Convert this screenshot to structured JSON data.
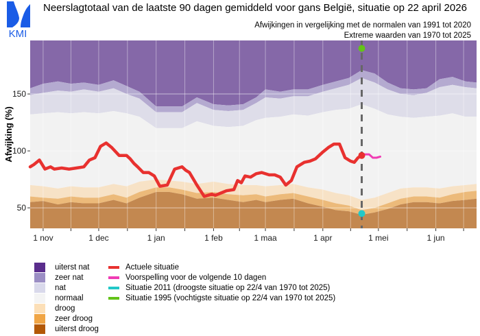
{
  "header": {
    "logo_text": "KMI",
    "title": "Neerslagtotaal van de laatste 90 dagen gemiddeld voor gans België, situatie op 22 april 2026",
    "subtitle_1": "Afwijkingen in vergelijking met de normalen van 1991 tot 2020",
    "subtitle_2": "Extreme waarden van 1970 tot 2025"
  },
  "colors": {
    "uiterst_nat": "#5a2d8c",
    "zeer_nat": "#9b8ec4",
    "nat": "#d9d9eb",
    "normaal": "#f4f4f4",
    "droog": "#fcdfb7",
    "zeer_droog": "#f0a545",
    "uiterst_droog": "#b35806",
    "plot_uiterst_nat": "#8568a8",
    "plot_zeer_nat": "#b4aad0",
    "plot_nat": "#dedde9",
    "plot_normaal": "#f2f2f2",
    "plot_droog": "#f7e2c6",
    "plot_zeer_droog": "#ecba7a",
    "plot_uiterst_droog": "#c38850",
    "actueel": "#e8312f",
    "voorspelling": "#f03cb4",
    "situatie_2011": "#22c8c8",
    "situatie_1995": "#63c318",
    "refline": "#666666",
    "logo": "#1a5ce6"
  },
  "legend": {
    "bands": [
      {
        "label": "uiterst nat",
        "color_key": "uiterst_nat"
      },
      {
        "label": "zeer nat",
        "color_key": "zeer_nat"
      },
      {
        "label": "nat",
        "color_key": "nat"
      },
      {
        "label": "normaal",
        "color_key": "normaal"
      },
      {
        "label": "droog",
        "color_key": "droog"
      },
      {
        "label": "zeer droog",
        "color_key": "zeer_droog"
      },
      {
        "label": "uiterst droog",
        "color_key": "uiterst_droog"
      }
    ],
    "lines": [
      {
        "label": "Actuele situatie",
        "color_key": "actueel"
      },
      {
        "label": "Voorspelling voor de volgende 10 dagen",
        "color_key": "voorspelling"
      },
      {
        "label": "Situatie 2011 (droogste situatie op 22/4 van 1970 tot 2025)",
        "color_key": "situatie_2011"
      },
      {
        "label": "Situatie 1995 (vochtigste situatie op 22/4 van 1970 tot 2025)",
        "color_key": "situatie_1995"
      }
    ]
  },
  "chart_data": {
    "type": "area",
    "title": "Neerslagtotaal van de laatste 90 dagen gemiddeld voor gans België, situatie op 22 april 2026",
    "xlabel": "",
    "ylabel": "Afwijking (%)",
    "x_unit": "days since 1 nov",
    "xlim": [
      -7,
      234
    ],
    "ylim": [
      32,
      197
    ],
    "grid": true,
    "x_ticks": [
      {
        "day": 0,
        "label": "1 nov"
      },
      {
        "day": 30,
        "label": "1 dec"
      },
      {
        "day": 61,
        "label": "1 jan"
      },
      {
        "day": 92,
        "label": "1 feb"
      },
      {
        "day": 120,
        "label": "1 maa"
      },
      {
        "day": 151,
        "label": "1 apr"
      },
      {
        "day": 181,
        "label": "1 mei"
      },
      {
        "day": 212,
        "label": "1 jun"
      }
    ],
    "y_ticks": [
      50,
      100,
      150
    ],
    "reference_day": 172,
    "reference_label": "22 april",
    "band_x": [
      -7,
      0,
      8,
      15,
      22,
      30,
      38,
      45,
      52,
      61,
      68,
      75,
      83,
      92,
      100,
      108,
      115,
      120,
      128,
      135,
      143,
      151,
      158,
      165,
      172,
      179,
      186,
      193,
      200,
      207,
      214,
      221,
      228,
      234
    ],
    "bands": {
      "uiterst_droog_top": [
        55,
        56,
        53,
        55,
        54,
        54,
        57,
        54,
        59,
        64,
        64,
        62,
        58,
        59,
        57,
        55,
        57,
        55,
        57,
        58,
        54,
        51,
        48,
        47,
        44,
        46,
        49,
        53,
        55,
        55,
        54,
        56,
        57,
        58
      ],
      "zeer_droog_top": [
        60,
        59,
        58,
        60,
        59,
        59,
        62,
        59,
        64,
        68,
        68,
        66,
        63,
        64,
        62,
        61,
        62,
        60,
        62,
        63,
        60,
        57,
        54,
        52,
        48,
        50,
        54,
        58,
        60,
        60,
        59,
        62,
        64,
        65
      ],
      "droog_top": [
        70,
        69,
        67,
        69,
        68,
        68,
        71,
        69,
        73,
        75,
        74,
        73,
        71,
        73,
        71,
        70,
        70,
        69,
        70,
        71,
        68,
        66,
        63,
        61,
        57,
        59,
        63,
        67,
        68,
        68,
        67,
        69,
        70,
        71
      ],
      "normaal_top": [
        132,
        133,
        134,
        133,
        134,
        133,
        135,
        133,
        130,
        120,
        120,
        120,
        126,
        122,
        121,
        122,
        127,
        129,
        130,
        132,
        131,
        134,
        136,
        137,
        141,
        137,
        132,
        130,
        129,
        130,
        131,
        133,
        130,
        130
      ],
      "nat_top": [
        149,
        151,
        153,
        152,
        154,
        152,
        155,
        150,
        146,
        134,
        134,
        134,
        142,
        136,
        135,
        136,
        142,
        147,
        146,
        148,
        148,
        152,
        155,
        158,
        164,
        160,
        154,
        150,
        149,
        151,
        156,
        158,
        156,
        155
      ],
      "zeer_nat_top": [
        155,
        159,
        161,
        159,
        160,
        158,
        162,
        157,
        152,
        139,
        139,
        139,
        147,
        141,
        140,
        141,
        147,
        154,
        152,
        154,
        154,
        158,
        161,
        164,
        171,
        168,
        160,
        155,
        154,
        155,
        163,
        165,
        161,
        160
      ],
      "uiterst_nat_top": [
        197,
        197,
        197,
        197,
        197,
        197,
        197,
        197,
        197,
        197,
        197,
        197,
        197,
        197,
        197,
        197,
        197,
        197,
        197,
        197,
        197,
        197,
        197,
        197,
        197,
        197,
        197,
        197,
        197,
        197,
        197,
        197,
        197,
        197
      ]
    },
    "series": [
      {
        "name": "Actuele situatie",
        "color_key": "actueel",
        "x": [
          -7,
          -5,
          -2,
          1,
          4,
          6,
          10,
          14,
          18,
          22,
          25,
          28,
          31,
          34,
          37,
          41,
          45,
          47,
          49,
          51,
          54,
          57,
          60,
          63,
          67,
          71,
          75,
          77,
          79,
          83,
          85,
          87,
          89,
          91,
          93,
          96,
          99,
          103,
          105,
          107,
          109,
          112,
          115,
          118,
          122,
          125,
          128,
          131,
          134,
          137,
          141,
          144,
          147,
          151,
          154,
          157,
          160,
          163,
          166,
          168,
          170,
          172
        ],
        "values": [
          86,
          88,
          92,
          84,
          86,
          84,
          85,
          84,
          85,
          86,
          92,
          94,
          104,
          107,
          103,
          96,
          96,
          93,
          89,
          86,
          81,
          81,
          78,
          69,
          70,
          84,
          86,
          83,
          81,
          70,
          65,
          60,
          61,
          62,
          61,
          63,
          65,
          66,
          74,
          72,
          78,
          77,
          80,
          81,
          79,
          79,
          77,
          70,
          74,
          86,
          90,
          91,
          93,
          99,
          103,
          106,
          106,
          94,
          91,
          90,
          94,
          96
        ]
      },
      {
        "name": "Voorspelling voor de volgende 10 dagen",
        "color_key": "voorspelling",
        "x": [
          172,
          174,
          176,
          178,
          180,
          182
        ],
        "values": [
          96,
          97,
          97,
          94,
          94,
          95
        ]
      }
    ],
    "points": [
      {
        "name": "Situatie 2011 (droogste situatie op 22/4 van 1970 tot 2025)",
        "day": 172,
        "value": 45,
        "color_key": "situatie_2011"
      },
      {
        "name": "Situatie 1995 (vochtigste situatie op 22/4 van 1970 tot 2025)",
        "day": 172,
        "value": 190,
        "color_key": "situatie_1995"
      },
      {
        "name": "Actuele situatie 22/4",
        "day": 172,
        "value": 96,
        "color_key": "actueel"
      }
    ]
  }
}
